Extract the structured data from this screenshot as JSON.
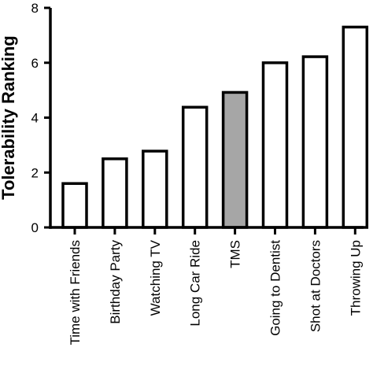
{
  "chart_data": {
    "type": "bar",
    "title": "",
    "xlabel": "",
    "ylabel": "Tolerability Ranking",
    "ylim": [
      0,
      8
    ],
    "yticks": [
      0,
      2,
      4,
      6,
      8
    ],
    "grid": false,
    "legend": "none",
    "categories": [
      "Time with Friends",
      "Birthday Party",
      "Watching TV",
      "Long Car Ride",
      "TMS",
      "Going to Dentist",
      "Shot at Doctors",
      "Throwing Up"
    ],
    "values": [
      1.6,
      2.5,
      2.78,
      4.38,
      4.92,
      6.0,
      6.22,
      7.3
    ],
    "colors": {
      "bar_fill": "#ffffff",
      "highlight_fill": "#a6a6a6",
      "stroke": "#000000"
    },
    "highlight_category": "TMS"
  }
}
